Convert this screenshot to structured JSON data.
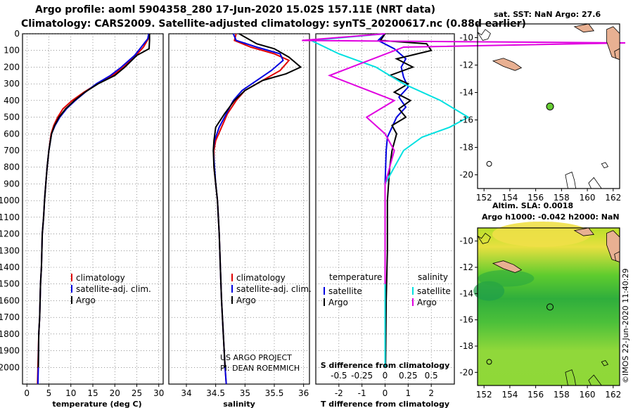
{
  "header": {
    "line1": "Argo profile: aoml 5904358_280 17-Jun-2020 15.02S 157.11E (NRT data)",
    "line2": "Climatology: CARS2009. Satellite-adjusted climatology: synTS_20200617.nc (0.88d earlier)"
  },
  "colors": {
    "climatology": "#e00000",
    "satellite": "#0000e0",
    "argo": "#000000",
    "sat_salinity": "#00e0e0",
    "argo_salinity": "#e000e0",
    "map_dot": "#66cc33"
  },
  "chart_data": [
    {
      "type": "line",
      "id": "temperature",
      "xlabel": "temperature (deg C)",
      "ylabel": "",
      "xlim": [
        -1,
        31
      ],
      "ylim": [
        2100,
        0
      ],
      "xticks": [
        "0",
        "5",
        "10",
        "15",
        "20",
        "25",
        "30"
      ],
      "yticks": [
        "0",
        "100",
        "200",
        "300",
        "400",
        "500",
        "600",
        "700",
        "800",
        "900",
        "1000",
        "1100",
        "1200",
        "1300",
        "1400",
        "1500",
        "1600",
        "1700",
        "1800",
        "1900",
        "2000"
      ],
      "legend": [
        "climatology",
        "satellite-adj. clim.",
        "Argo"
      ],
      "series": [
        {
          "name": "climatology",
          "x": [
            27.8,
            27.6,
            26.5,
            24.8,
            22.0,
            19.5,
            16.0,
            13.0,
            10.3,
            8.2,
            7.0,
            6.1,
            5.5,
            5.0,
            4.6,
            4.3,
            4.0,
            3.8,
            3.5,
            3.3,
            3.1,
            2.9,
            2.7,
            2.5,
            2.4
          ],
          "depth": [
            0,
            30,
            80,
            130,
            200,
            250,
            300,
            350,
            400,
            450,
            500,
            550,
            600,
            700,
            800,
            900,
            1000,
            1100,
            1200,
            1400,
            1500,
            1700,
            1800,
            2000,
            2100
          ]
        },
        {
          "name": "satellite-adj. clim.",
          "x": [
            27.7,
            27.5,
            26.0,
            24.5,
            21.5,
            19.0,
            15.8,
            13.3,
            11.0,
            9.0,
            7.5,
            6.4,
            5.6,
            5.0,
            4.6,
            4.3,
            4.0,
            3.8,
            3.5,
            3.3,
            3.1,
            2.9,
            2.7,
            2.6,
            2.5
          ],
          "depth": [
            0,
            30,
            80,
            130,
            200,
            250,
            300,
            350,
            400,
            450,
            500,
            550,
            600,
            700,
            800,
            900,
            1000,
            1100,
            1200,
            1400,
            1500,
            1700,
            1800,
            2000,
            2100
          ]
        },
        {
          "name": "Argo",
          "x": [
            27.9,
            27.9,
            27.8,
            25.0,
            22.3,
            20.0,
            16.2,
            13.2,
            10.8,
            8.8,
            7.3,
            6.3,
            5.6,
            5.0,
            4.6,
            4.3,
            4.0,
            3.8,
            3.5,
            3.3,
            3.1,
            2.9,
            2.7,
            2.6
          ],
          "depth": [
            0,
            40,
            90,
            130,
            200,
            250,
            300,
            350,
            400,
            450,
            500,
            550,
            600,
            700,
            800,
            900,
            1000,
            1100,
            1200,
            1400,
            1500,
            1700,
            1800,
            2000
          ]
        }
      ]
    },
    {
      "type": "line",
      "id": "salinity",
      "xlabel": "salinity",
      "xlim": [
        33.7,
        36.1
      ],
      "ylim": [
        2100,
        0
      ],
      "xticks": [
        "34",
        "34.5",
        "35",
        "35.5",
        "36"
      ],
      "legend": [
        "climatology",
        "satellite-adj. clim.",
        "Argo"
      ],
      "annotations": [
        "US ARGO PROJECT",
        "PI: DEAN ROEMMICH"
      ],
      "series": [
        {
          "name": "climatology",
          "x": [
            34.85,
            34.82,
            35.1,
            35.5,
            35.75,
            35.6,
            35.3,
            35.0,
            34.85,
            34.7,
            34.6,
            34.5,
            34.47,
            34.47,
            34.5,
            34.53,
            34.56,
            34.58,
            34.6,
            34.63,
            34.66,
            34.68
          ],
          "depth": [
            0,
            40,
            80,
            120,
            160,
            220,
            280,
            340,
            400,
            480,
            560,
            640,
            700,
            800,
            900,
            1000,
            1200,
            1400,
            1600,
            1800,
            2000,
            2100
          ]
        },
        {
          "name": "satellite-adj. clim.",
          "x": [
            34.8,
            34.85,
            35.2,
            35.6,
            35.65,
            35.45,
            35.2,
            34.95,
            34.8,
            34.68,
            34.56,
            34.48,
            34.46,
            34.48,
            34.5,
            34.53,
            34.56,
            34.58,
            34.6,
            34.63,
            34.66,
            34.68
          ],
          "depth": [
            0,
            40,
            80,
            120,
            160,
            220,
            280,
            340,
            400,
            480,
            560,
            640,
            700,
            800,
            900,
            1000,
            1200,
            1400,
            1600,
            1800,
            2000,
            2100
          ]
        },
        {
          "name": "Argo",
          "x": [
            34.9,
            35.2,
            35.5,
            35.75,
            35.95,
            35.7,
            35.3,
            35.0,
            34.82,
            34.65,
            34.5,
            34.47,
            34.46,
            34.47,
            34.5,
            34.53,
            34.56,
            34.58,
            34.6,
            34.63,
            34.66
          ],
          "depth": [
            0,
            60,
            90,
            140,
            200,
            240,
            280,
            340,
            400,
            480,
            560,
            640,
            700,
            800,
            900,
            1000,
            1200,
            1400,
            1600,
            1800,
            2000
          ]
        }
      ]
    },
    {
      "type": "line",
      "id": "difference",
      "xlabel": "T difference from climatology",
      "xlabel_top": "S difference from climatology",
      "xlim": [
        -3,
        3
      ],
      "ylim": [
        2100,
        0
      ],
      "xticks": [
        "-2",
        "-1",
        "0",
        "1",
        "2"
      ],
      "xticks_top": [
        "-0.5",
        "-0.25",
        "0",
        "0.25",
        "0.5"
      ],
      "legend_headers": [
        "temperature",
        "salinity"
      ],
      "legend": [
        "satellite",
        "Argo",
        "satellite",
        "Argo"
      ],
      "series": [
        {
          "name": "temperature satellite",
          "x": [
            0.0,
            -0.3,
            0.4,
            0.9,
            0.7,
            0.8,
            1.0,
            0.6,
            0.9,
            0.5,
            0.3,
            0.1,
            0.05,
            0.0,
            0.0,
            0.0,
            0.0,
            0.0
          ],
          "depth": [
            0,
            40,
            90,
            150,
            200,
            260,
            320,
            380,
            440,
            500,
            560,
            620,
            700,
            900,
            1200,
            1500,
            1800,
            2000
          ]
        },
        {
          "name": "temperature Argo",
          "x": [
            0.0,
            -0.2,
            1.8,
            2.0,
            0.5,
            1.2,
            0.2,
            1.0,
            0.4,
            1.1,
            0.6,
            0.9,
            0.3,
            0.5,
            0.3,
            0.2,
            0.1,
            0.1,
            0.05,
            0.02
          ],
          "depth": [
            0,
            40,
            60,
            100,
            150,
            200,
            250,
            300,
            350,
            400,
            450,
            500,
            550,
            600,
            700,
            800,
            1000,
            1300,
            1600,
            2000
          ]
        },
        {
          "name": "salinity satellite",
          "x": [
            0.0,
            -0.8,
            -0.5,
            -0.1,
            0.2,
            0.6,
            0.9,
            0.7,
            0.4,
            0.2,
            0.0,
            0.0,
            0.0
          ],
          "depth": [
            0,
            40,
            120,
            200,
            300,
            400,
            500,
            560,
            620,
            700,
            900,
            1500,
            2000
          ]
        },
        {
          "name": "salinity Argo",
          "x": [
            0.0,
            -0.9,
            2.6,
            0.2,
            -0.6,
            0.1,
            -0.2,
            0.0,
            0.1,
            0.0,
            0.0
          ],
          "depth": [
            0,
            40,
            55,
            80,
            250,
            400,
            500,
            600,
            700,
            900,
            1500
          ]
        }
      ]
    },
    {
      "type": "heatmap",
      "id": "map-sst",
      "title": "sat. SST: NaN Argo: 27.6",
      "xlim": [
        151.5,
        162.5
      ],
      "ylim": [
        -21,
        -9
      ],
      "xticks": [
        "152",
        "154",
        "156",
        "158",
        "160",
        "162"
      ],
      "yticks": [
        "-10",
        "-12",
        "-14",
        "-16",
        "-18",
        "-20"
      ],
      "argo_position": {
        "lon": 157.11,
        "lat": -15.02
      }
    },
    {
      "type": "heatmap",
      "id": "map-sla",
      "title": "Altim. SLA: 0.0018",
      "subtitle": "Argo h1000: -0.042 h2000: NaN",
      "xlim": [
        151.5,
        162.5
      ],
      "ylim": [
        -21,
        -9
      ],
      "xticks": [
        "152",
        "154",
        "156",
        "158",
        "160",
        "162"
      ],
      "yticks": [
        "-10",
        "-12",
        "-14",
        "-16",
        "-18",
        "-20"
      ],
      "argo_position": {
        "lon": 157.11,
        "lat": -15.02
      }
    }
  ],
  "footer": {
    "credit": "©IMOS 22-Jun-2020 11:40:29"
  }
}
